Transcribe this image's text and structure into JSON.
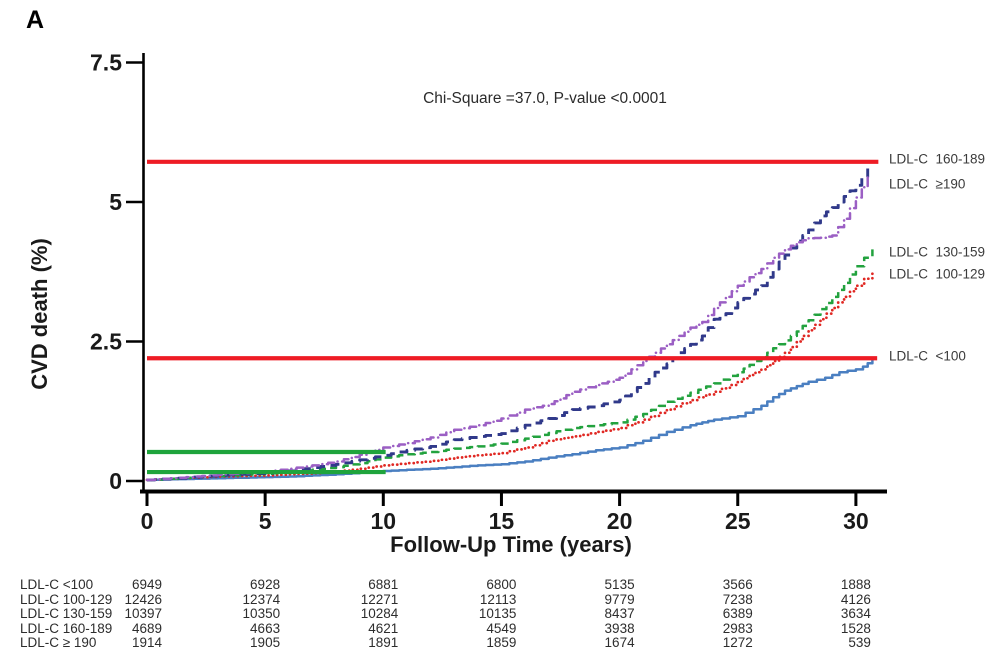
{
  "panel_label": "A",
  "annotation": "Chi-Square =37.0, P-value <0.0001",
  "axes": {
    "y_label": "CVD death (%)",
    "x_label": "Follow-Up Time (years)",
    "y_ticks": [
      0,
      2.5,
      5,
      7.5
    ],
    "x_ticks": [
      0,
      5,
      10,
      15,
      20,
      25,
      30
    ]
  },
  "chart_data": {
    "type": "line",
    "title": "",
    "xlabel": "Follow-Up Time (years)",
    "ylabel": "CVD death (%)",
    "xlim": [
      0,
      31
    ],
    "ylim": [
      0,
      7.5
    ],
    "grid": false,
    "legend_position": "right-edge-labels",
    "series": [
      {
        "name": "LDL-C <100",
        "slug": "ldl-under-100",
        "color": "#4a7fc1",
        "style": "solid",
        "x": [
          0,
          1,
          2,
          3,
          4,
          5,
          6,
          7,
          8,
          9,
          10,
          11,
          12,
          13,
          14,
          15,
          16,
          17,
          18,
          19,
          20,
          21,
          22,
          23,
          23.5,
          24,
          25,
          26,
          26.5,
          27,
          27.5,
          28,
          28.7,
          29.3,
          30,
          30.3,
          30.7
        ],
        "y": [
          0.02,
          0.03,
          0.04,
          0.05,
          0.06,
          0.07,
          0.08,
          0.1,
          0.12,
          0.15,
          0.18,
          0.2,
          0.22,
          0.25,
          0.28,
          0.3,
          0.35,
          0.42,
          0.48,
          0.55,
          0.6,
          0.72,
          0.88,
          1.0,
          1.05,
          1.1,
          1.16,
          1.35,
          1.5,
          1.62,
          1.7,
          1.78,
          1.85,
          1.95,
          2.0,
          2.05,
          2.17
        ]
      },
      {
        "name": "LDL-C 100-129",
        "slug": "ldl-100-129",
        "color": "#e02823",
        "style": "dotted",
        "x": [
          0,
          1,
          2,
          3,
          4,
          5,
          6,
          7,
          8,
          9,
          10,
          11,
          12,
          13,
          14,
          15,
          16,
          17,
          18,
          19,
          20,
          21,
          22,
          23,
          24,
          25,
          25.5,
          26,
          26.5,
          27,
          27.5,
          28,
          28.5,
          29,
          29.5,
          30,
          30.7
        ],
        "y": [
          0.02,
          0.04,
          0.06,
          0.08,
          0.09,
          0.1,
          0.12,
          0.14,
          0.17,
          0.22,
          0.28,
          0.32,
          0.36,
          0.42,
          0.46,
          0.5,
          0.6,
          0.72,
          0.8,
          0.88,
          0.95,
          1.1,
          1.28,
          1.45,
          1.6,
          1.78,
          1.9,
          2.0,
          2.15,
          2.3,
          2.5,
          2.7,
          2.9,
          3.1,
          3.3,
          3.5,
          3.75
        ]
      },
      {
        "name": "LDL-C 130-159",
        "slug": "ldl-130-159",
        "color": "#22a23e",
        "style": "dashed",
        "x": [
          0,
          1,
          2,
          3,
          4,
          5,
          6,
          7,
          8,
          9,
          10,
          11,
          12,
          13,
          14,
          15,
          16,
          17,
          18,
          19,
          20,
          21,
          22,
          23,
          24,
          25,
          25.5,
          26,
          26.5,
          27,
          27.5,
          28,
          28.5,
          29,
          29.5,
          30,
          30.7
        ],
        "y": [
          0.02,
          0.04,
          0.07,
          0.09,
          0.11,
          0.13,
          0.16,
          0.2,
          0.25,
          0.32,
          0.42,
          0.48,
          0.52,
          0.58,
          0.62,
          0.67,
          0.76,
          0.86,
          0.95,
          1.0,
          1.05,
          1.2,
          1.42,
          1.58,
          1.75,
          1.95,
          2.08,
          2.22,
          2.38,
          2.52,
          2.68,
          2.88,
          3.08,
          3.3,
          3.55,
          3.85,
          4.15
        ]
      },
      {
        "name": "LDL-C 160-189",
        "slug": "ldl-160-189",
        "color": "#30398a",
        "style": "dashed-long",
        "x": [
          0,
          1,
          2,
          3,
          4,
          5,
          6,
          7,
          8,
          9,
          10,
          11,
          12,
          13,
          14,
          15,
          16,
          17,
          18,
          19,
          20,
          20.5,
          21,
          21.5,
          22,
          22.5,
          23,
          23.5,
          24,
          24.5,
          25,
          25.5,
          26,
          26.5,
          27,
          27.5,
          28,
          28.5,
          29,
          29.5,
          30,
          30.5
        ],
        "y": [
          0.02,
          0.04,
          0.07,
          0.1,
          0.12,
          0.14,
          0.18,
          0.24,
          0.3,
          0.38,
          0.46,
          0.55,
          0.62,
          0.74,
          0.8,
          0.85,
          1.0,
          1.12,
          1.28,
          1.35,
          1.45,
          1.6,
          1.75,
          1.95,
          2.1,
          2.3,
          2.45,
          2.6,
          2.9,
          3.0,
          3.2,
          3.35,
          3.5,
          3.8,
          4.05,
          4.3,
          4.5,
          4.75,
          4.9,
          5.1,
          5.3,
          5.6
        ]
      },
      {
        "name": "LDL-C ≥190",
        "slug": "ldl-190-plus",
        "color": "#9b5fc4",
        "style": "dashdot",
        "x": [
          0,
          1,
          2,
          3,
          4,
          5,
          6,
          7,
          8,
          9,
          10,
          11,
          12,
          13,
          14,
          15,
          16,
          16.5,
          17,
          17.5,
          18,
          19,
          19.5,
          20,
          20.5,
          21,
          21.5,
          22,
          22.5,
          23,
          23.5,
          24,
          24.5,
          25,
          25.5,
          26,
          26.5,
          27,
          27.5,
          28,
          28.5,
          29,
          29.5,
          30,
          30.5
        ],
        "y": [
          0.02,
          0.05,
          0.08,
          0.11,
          0.14,
          0.17,
          0.22,
          0.28,
          0.35,
          0.47,
          0.6,
          0.68,
          0.78,
          0.92,
          1.0,
          1.12,
          1.28,
          1.32,
          1.38,
          1.48,
          1.6,
          1.72,
          1.78,
          1.85,
          2.0,
          2.15,
          2.3,
          2.45,
          2.6,
          2.75,
          2.85,
          3.1,
          3.3,
          3.5,
          3.65,
          3.8,
          4.0,
          4.15,
          4.28,
          4.35,
          4.36,
          4.4,
          4.7,
          5.08,
          5.45
        ]
      }
    ],
    "reference_lines": [
      {
        "name": "red-reference-line-upper",
        "color": "#ee1c25",
        "y": 5.72,
        "x0": 0,
        "x1": 30.95
      },
      {
        "name": "red-reference-line-lower",
        "color": "#ee1c25",
        "y": 2.2,
        "x0": 0,
        "x1": 30.9
      },
      {
        "name": "green-reference-line-upper",
        "color": "#1fa43c",
        "y": 0.52,
        "x0": 0,
        "x1": 10.1
      },
      {
        "name": "green-reference-line-lower",
        "color": "#1fa43c",
        "y": 0.16,
        "x0": 0,
        "x1": 10.1
      }
    ],
    "right_labels": [
      {
        "text": "LDL-C  160-189",
        "y_pct": 5.77
      },
      {
        "text": "LDL-C  ≥190",
        "y_pct": 5.32
      },
      {
        "text": "LDL-C  130-159",
        "y_pct": 4.1
      },
      {
        "text": "LDL-C  100-129",
        "y_pct": 3.71
      },
      {
        "text": "LDL-C  <100",
        "y_pct": 2.24
      }
    ]
  },
  "risk_table": {
    "rows": [
      {
        "label": "LDL-C <100",
        "values": [
          6949,
          6928,
          6881,
          6800,
          5135,
          3566,
          1888
        ]
      },
      {
        "label": "LDL-C 100-129",
        "values": [
          12426,
          12374,
          12271,
          12113,
          9779,
          7238,
          4126
        ]
      },
      {
        "label": "LDL-C 130-159",
        "values": [
          10397,
          10350,
          10284,
          10135,
          8437,
          6389,
          3634
        ]
      },
      {
        "label": "LDL-C 160-189",
        "values": [
          4689,
          4663,
          4621,
          4549,
          3938,
          2983,
          1528
        ]
      },
      {
        "label": "LDL-C ≥ 190",
        "values": [
          1914,
          1905,
          1891,
          1859,
          1674,
          1272,
          539
        ]
      }
    ]
  }
}
